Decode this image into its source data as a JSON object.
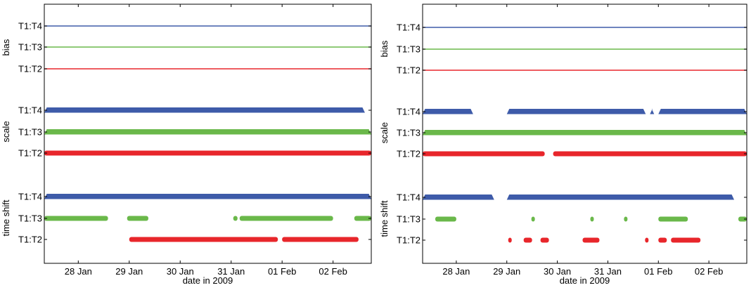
{
  "chart_data": [
    {
      "type": "scatter",
      "xlabel": "date in 2009",
      "xlim": [
        "2009-01-27 08:00",
        "2009-02-02 18:00"
      ],
      "x_ticks": [
        "28 Jan",
        "29 Jan",
        "30 Jan",
        "31 Jan",
        "01 Feb",
        "02 Feb"
      ],
      "y_ticks": [
        "T1:T4",
        "T1:T3",
        "T1:T2",
        "T1:T4",
        "T1:T3",
        "T1:T2",
        "T1:T4",
        "T1:T3",
        "T1:T2"
      ],
      "groups": [
        "bias",
        "scale",
        "time shift"
      ],
      "series": [
        {
          "group": "bias",
          "row": "T1:T4",
          "color": "#3e5ba9",
          "marker": "line",
          "segments": [
            [
              "2009-01-27 08:00",
              "2009-02-02 18:00"
            ]
          ]
        },
        {
          "group": "bias",
          "row": "T1:T3",
          "color": "#6ab84a",
          "marker": "line",
          "segments": [
            [
              "2009-01-27 08:00",
              "2009-02-02 18:00"
            ]
          ]
        },
        {
          "group": "bias",
          "row": "T1:T2",
          "color": "#e8262b",
          "marker": "line",
          "segments": [
            [
              "2009-01-27 08:00",
              "2009-02-02 18:00"
            ]
          ]
        },
        {
          "group": "scale",
          "row": "T1:T4",
          "color": "#3e5ba9",
          "marker": "triangle",
          "segments": [
            [
              "2009-01-27 08:00",
              "2009-02-02 15:00"
            ]
          ]
        },
        {
          "group": "scale",
          "row": "T1:T3",
          "color": "#6ab84a",
          "marker": "triangle",
          "segments": [
            [
              "2009-01-27 08:00",
              "2009-02-02 18:00"
            ]
          ]
        },
        {
          "group": "scale",
          "row": "T1:T2",
          "color": "#e8262b",
          "marker": "star",
          "segments": [
            [
              "2009-01-27 08:00",
              "2009-02-02 18:00"
            ]
          ]
        },
        {
          "group": "time shift",
          "row": "T1:T4",
          "color": "#3e5ba9",
          "marker": "triangle",
          "segments": [
            [
              "2009-01-27 08:00",
              "2009-02-02 18:00"
            ]
          ]
        },
        {
          "group": "time shift",
          "row": "T1:T3",
          "color": "#6ab84a",
          "marker": "star",
          "segments": [
            [
              "2009-01-27 08:00",
              "2009-01-28 14:00"
            ],
            [
              "2009-01-28 23:00",
              "2009-01-29 09:00"
            ],
            [
              "2009-01-31 01:00",
              "2009-01-31 03:00"
            ],
            [
              "2009-01-31 04:00",
              "2009-02-02 00:00"
            ],
            [
              "2009-02-02 10:00",
              "2009-02-02 18:00"
            ]
          ]
        },
        {
          "group": "time shift",
          "row": "T1:T2",
          "color": "#e8262b",
          "marker": "star",
          "segments": [
            [
              "2009-01-29 00:00",
              "2009-01-31 22:00"
            ],
            [
              "2009-02-01 00:00",
              "2009-02-02 12:00"
            ]
          ]
        }
      ]
    },
    {
      "type": "scatter",
      "xlabel": "date in 2009",
      "xlim": [
        "2009-01-27 08:00",
        "2009-02-02 18:00"
      ],
      "x_ticks": [
        "28 Jan",
        "29 Jan",
        "30 Jan",
        "31 Jan",
        "01 Feb",
        "02 Feb"
      ],
      "y_ticks": [
        "T1:T4",
        "T1:T3",
        "T1:T2",
        "T1:T4",
        "T1:T3",
        "T1:T2",
        "T1:T4",
        "T1:T3",
        "T1:T2"
      ],
      "groups": [
        "bias",
        "scale",
        "time shift"
      ],
      "series": [
        {
          "group": "bias",
          "row": "T1:T4",
          "color": "#3e5ba9",
          "marker": "line",
          "segments": [
            [
              "2009-01-27 08:00",
              "2009-02-02 18:00"
            ]
          ]
        },
        {
          "group": "bias",
          "row": "T1:T3",
          "color": "#6ab84a",
          "marker": "line",
          "segments": [
            [
              "2009-01-27 08:00",
              "2009-02-02 18:00"
            ]
          ]
        },
        {
          "group": "bias",
          "row": "T1:T2",
          "color": "#e8262b",
          "marker": "line",
          "segments": [
            [
              "2009-01-27 08:00",
              "2009-02-02 18:00"
            ]
          ]
        },
        {
          "group": "scale",
          "row": "T1:T4",
          "color": "#3e5ba9",
          "marker": "triangle",
          "segments": [
            [
              "2009-01-27 08:00",
              "2009-01-28 08:00"
            ],
            [
              "2009-01-29 00:00",
              "2009-01-31 18:00"
            ],
            [
              "2009-01-31 20:00",
              "2009-01-31 22:00"
            ],
            [
              "2009-02-01 00:00",
              "2009-02-02 18:00"
            ]
          ]
        },
        {
          "group": "scale",
          "row": "T1:T3",
          "color": "#6ab84a",
          "marker": "triangle",
          "segments": [
            [
              "2009-01-27 08:00",
              "2009-02-02 18:00"
            ]
          ]
        },
        {
          "group": "scale",
          "row": "T1:T2",
          "color": "#e8262b",
          "marker": "star",
          "segments": [
            [
              "2009-01-27 08:00",
              "2009-01-29 18:00"
            ],
            [
              "2009-01-29 22:00",
              "2009-02-02 18:00"
            ]
          ]
        },
        {
          "group": "time shift",
          "row": "T1:T4",
          "color": "#3e5ba9",
          "marker": "triangle",
          "segments": [
            [
              "2009-01-27 08:00",
              "2009-01-28 18:00"
            ],
            [
              "2009-01-29 00:00",
              "2009-02-02 12:00"
            ]
          ]
        },
        {
          "group": "time shift",
          "row": "T1:T3",
          "color": "#6ab84a",
          "marker": "star",
          "segments": [
            [
              "2009-01-27 14:00",
              "2009-01-28 00:00"
            ],
            [
              "2009-01-29 12:00",
              "2009-01-29 13:00"
            ],
            [
              "2009-01-30 16:00",
              "2009-01-30 17:00"
            ],
            [
              "2009-01-31 08:00",
              "2009-01-31 09:00"
            ],
            [
              "2009-02-01 00:00",
              "2009-02-01 14:00"
            ],
            [
              "2009-02-02 14:00",
              "2009-02-02 18:00"
            ]
          ]
        },
        {
          "group": "time shift",
          "row": "T1:T2",
          "color": "#e8262b",
          "marker": "star",
          "segments": [
            [
              "2009-01-29 01:00",
              "2009-01-29 02:00"
            ],
            [
              "2009-01-29 08:00",
              "2009-01-29 12:00"
            ],
            [
              "2009-01-29 16:00",
              "2009-01-29 20:00"
            ],
            [
              "2009-01-30 12:00",
              "2009-01-30 20:00"
            ],
            [
              "2009-01-31 18:00",
              "2009-01-31 19:00"
            ],
            [
              "2009-02-01 00:00",
              "2009-02-01 04:00"
            ],
            [
              "2009-02-01 06:00",
              "2009-02-01 20:00"
            ]
          ]
        }
      ]
    }
  ]
}
